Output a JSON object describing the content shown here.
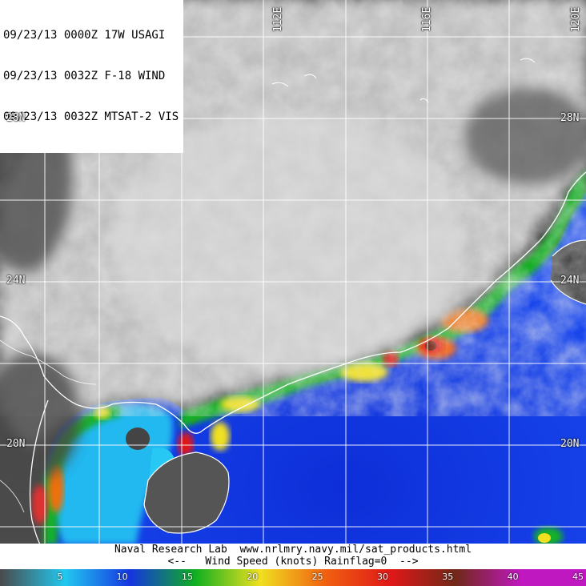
{
  "header": {
    "line1": "09/23/13 0000Z 17W USAGI",
    "line2": "09/23/13 0032Z F-18 WIND",
    "line3": "09/23/13 0032Z MTSAT-2 VIS"
  },
  "grid": {
    "lat_labels": [
      {
        "text": "28N",
        "lat": 28
      },
      {
        "text": "24N",
        "lat": 24
      },
      {
        "text": "20N",
        "lat": 20
      }
    ],
    "lon_labels": [
      {
        "text": "112E",
        "lon": 112
      },
      {
        "text": "116E",
        "lon": 116
      },
      {
        "text": "120E",
        "lon": 120
      }
    ]
  },
  "footer": {
    "line1": "Naval Research Lab  www.nrlmry.navy.mil/sat_products.html",
    "line2": "<--   Wind Speed (knots) Rainflag=0  -->"
  },
  "colorbar": [
    {
      "label": "5",
      "color": "#4a4a4a"
    },
    {
      "label": "10",
      "color": "#22c8f0"
    },
    {
      "label": "15",
      "color": "#1535e0"
    },
    {
      "label": "20",
      "color": "#10b020"
    },
    {
      "label": "25",
      "color": "#f0e020"
    },
    {
      "label": "30",
      "color": "#f06010"
    },
    {
      "label": "35",
      "color": "#e01818"
    },
    {
      "label": "40",
      "color": "#702818"
    },
    {
      "label": "45",
      "color": "#c018c0"
    }
  ]
}
